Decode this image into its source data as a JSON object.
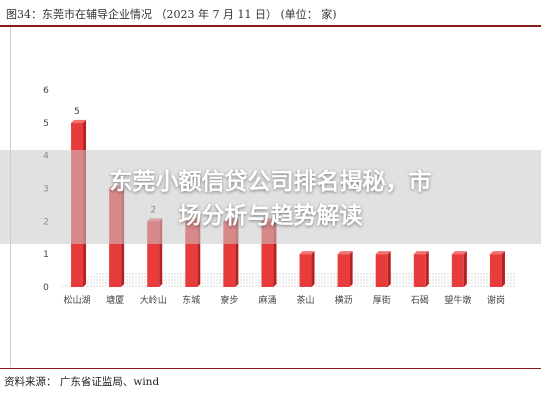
{
  "figure": {
    "title": "图34：东莞市在辅导企业情况 （2023 年 7 月 11 日） (单位： 家)",
    "source": "资料来源： 广东省证监局、wind"
  },
  "overlay": {
    "headline": "东莞小额信贷公司排名揭秘，市场分析与趋势解读"
  },
  "colors": {
    "bar": "#e83b3b",
    "bar_dark": "#b52222",
    "title_rule": "#8b1a1a"
  },
  "chart_data": {
    "type": "bar",
    "title": "",
    "xlabel": "",
    "ylabel": "",
    "ylim": [
      0,
      6
    ],
    "yticks": [
      0,
      1,
      2,
      3,
      4,
      5,
      6
    ],
    "categories": [
      "松山湖",
      "塘厦",
      "大岭山",
      "东城",
      "寮步",
      "麻涌",
      "茶山",
      "横沥",
      "厚街",
      "石碣",
      "望牛墩",
      "谢岗"
    ],
    "values": [
      5,
      3,
      2,
      2,
      2,
      2,
      1,
      1,
      1,
      1,
      1,
      1
    ],
    "data_labels": [
      "5",
      "",
      "2",
      "",
      "",
      "",
      "",
      "",
      "",
      "",
      "",
      ""
    ],
    "grid": false
  }
}
